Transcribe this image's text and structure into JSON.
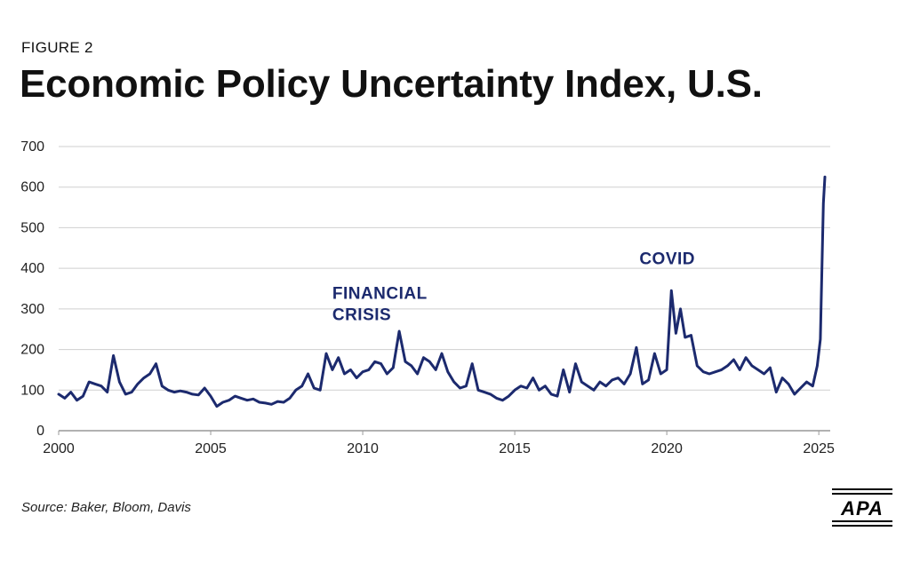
{
  "figure_label": "FIGURE 2",
  "source": "Source: Baker, Bloom, Davis",
  "logo_text": "APA",
  "colors": {
    "line": "#1c2a6e",
    "grid": "#cfcfcf",
    "axis": "#999999"
  },
  "chart_data": {
    "type": "line",
    "title": "Economic Policy Uncertainty Index, U.S.",
    "xlabel": "",
    "ylabel": "",
    "xlim": [
      2000,
      2025.2
    ],
    "ylim": [
      0,
      700
    ],
    "yticks": [
      0,
      100,
      200,
      300,
      400,
      500,
      600,
      700
    ],
    "xticks": [
      2000,
      2005,
      2010,
      2015,
      2020,
      2025
    ],
    "grid": true,
    "annotations": [
      {
        "lines": [
          "FINANCIAL",
          "CRISIS"
        ],
        "x": 2009.0,
        "y": 325
      },
      {
        "lines": [
          "COVID"
        ],
        "x": 2019.1,
        "y": 410
      }
    ],
    "series": [
      {
        "name": "Economic Policy Uncertainty Index",
        "x": [
          2000.0,
          2000.2,
          2000.4,
          2000.6,
          2000.8,
          2001.0,
          2001.2,
          2001.4,
          2001.6,
          2001.8,
          2002.0,
          2002.2,
          2002.4,
          2002.6,
          2002.8,
          2003.0,
          2003.2,
          2003.4,
          2003.6,
          2003.8,
          2004.0,
          2004.2,
          2004.4,
          2004.6,
          2004.8,
          2005.0,
          2005.2,
          2005.4,
          2005.6,
          2005.8,
          2006.0,
          2006.2,
          2006.4,
          2006.6,
          2006.8,
          2007.0,
          2007.2,
          2007.4,
          2007.6,
          2007.8,
          2008.0,
          2008.2,
          2008.4,
          2008.6,
          2008.8,
          2009.0,
          2009.2,
          2009.4,
          2009.6,
          2009.8,
          2010.0,
          2010.2,
          2010.4,
          2010.6,
          2010.8,
          2011.0,
          2011.2,
          2011.4,
          2011.6,
          2011.8,
          2012.0,
          2012.2,
          2012.4,
          2012.6,
          2012.8,
          2013.0,
          2013.2,
          2013.4,
          2013.6,
          2013.8,
          2014.0,
          2014.2,
          2014.4,
          2014.6,
          2014.8,
          2015.0,
          2015.2,
          2015.4,
          2015.6,
          2015.8,
          2016.0,
          2016.2,
          2016.4,
          2016.6,
          2016.8,
          2017.0,
          2017.2,
          2017.4,
          2017.6,
          2017.8,
          2018.0,
          2018.2,
          2018.4,
          2018.6,
          2018.8,
          2019.0,
          2019.2,
          2019.4,
          2019.6,
          2019.8,
          2020.0,
          2020.15,
          2020.3,
          2020.45,
          2020.6,
          2020.8,
          2021.0,
          2021.2,
          2021.4,
          2021.6,
          2021.8,
          2022.0,
          2022.2,
          2022.4,
          2022.6,
          2022.8,
          2023.0,
          2023.2,
          2023.4,
          2023.6,
          2023.8,
          2024.0,
          2024.2,
          2024.4,
          2024.6,
          2024.8,
          2024.95,
          2025.05,
          2025.15,
          2025.2
        ],
        "values": [
          90,
          80,
          95,
          75,
          85,
          120,
          115,
          110,
          95,
          185,
          120,
          90,
          95,
          115,
          130,
          140,
          165,
          110,
          100,
          95,
          98,
          95,
          90,
          88,
          105,
          85,
          60,
          70,
          75,
          85,
          80,
          75,
          78,
          70,
          68,
          65,
          72,
          70,
          80,
          100,
          110,
          140,
          105,
          100,
          190,
          150,
          180,
          140,
          150,
          130,
          145,
          150,
          170,
          165,
          140,
          155,
          245,
          170,
          160,
          140,
          180,
          170,
          150,
          190,
          145,
          120,
          105,
          110,
          165,
          100,
          95,
          90,
          80,
          75,
          85,
          100,
          110,
          105,
          130,
          100,
          110,
          90,
          85,
          150,
          95,
          165,
          120,
          110,
          100,
          120,
          110,
          125,
          130,
          115,
          140,
          205,
          115,
          125,
          190,
          140,
          150,
          345,
          240,
          300,
          230,
          235,
          160,
          145,
          140,
          145,
          150,
          160,
          175,
          150,
          180,
          160,
          150,
          140,
          155,
          95,
          130,
          115,
          90,
          105,
          120,
          110,
          160,
          225,
          560,
          625
        ]
      }
    ]
  }
}
